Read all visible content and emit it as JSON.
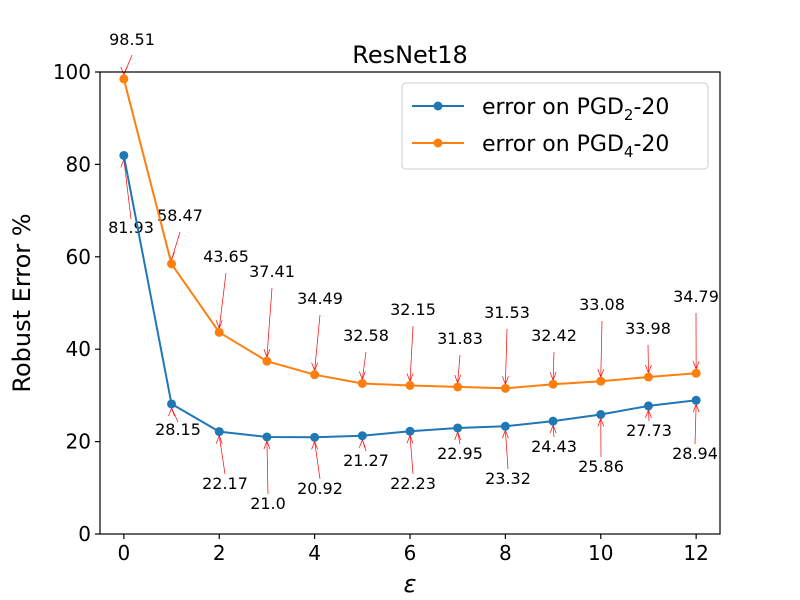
{
  "chart_data": {
    "type": "line",
    "title": "ResNet18",
    "xlabel": "ε",
    "ylabel": "Robust Error %",
    "xlim": [
      -0.5,
      12.5
    ],
    "ylim": [
      0,
      100
    ],
    "xticks": [
      0,
      2,
      4,
      6,
      8,
      10,
      12
    ],
    "yticks": [
      0,
      20,
      40,
      60,
      80,
      100
    ],
    "grid": false,
    "legend_position": "top-right",
    "x": [
      0,
      1,
      2,
      3,
      4,
      5,
      6,
      7,
      8,
      9,
      10,
      11,
      12
    ],
    "series": [
      {
        "name": "error on PGD2-20",
        "legend_main": "error on PGD",
        "legend_sub": "2",
        "legend_suffix": "-20",
        "color": "#1f77b4",
        "values": [
          81.93,
          28.15,
          22.17,
          21.0,
          20.92,
          21.27,
          22.23,
          22.95,
          23.32,
          24.43,
          25.86,
          27.73,
          28.94
        ],
        "labels": [
          "81.93",
          "28.15",
          "22.17",
          "21.0",
          "20.92",
          "21.27",
          "22.23",
          "22.95",
          "23.32",
          "24.43",
          "25.86",
          "27.73",
          "28.94"
        ]
      },
      {
        "name": "error on PGD4-20",
        "legend_main": "error on PGD",
        "legend_sub": "4",
        "legend_suffix": "-20",
        "color": "#ff7f0e",
        "values": [
          98.51,
          58.47,
          43.65,
          37.41,
          34.49,
          32.58,
          32.15,
          31.83,
          31.53,
          32.42,
          33.08,
          33.98,
          34.79
        ],
        "labels": [
          "98.51",
          "58.47",
          "43.65",
          "37.41",
          "34.49",
          "32.58",
          "32.15",
          "31.83",
          "31.53",
          "32.42",
          "33.08",
          "33.98",
          "34.79"
        ]
      }
    ]
  }
}
